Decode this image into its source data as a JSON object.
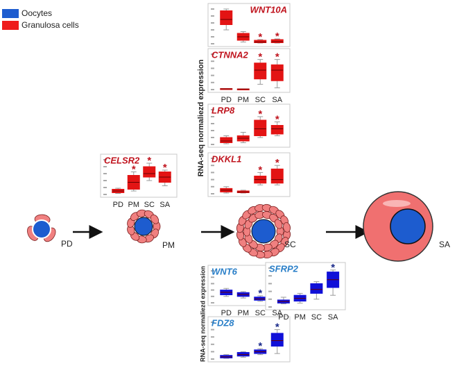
{
  "legend": [
    {
      "label": "Oocytes",
      "color": "#1d5ccf"
    },
    {
      "label": "Granulosa cells",
      "color": "#ee1c1c"
    }
  ],
  "stages": [
    "PD",
    "PM",
    "SC",
    "SA"
  ],
  "axis_labels": [
    "RNA-seq normaliezd expression",
    "RNA-seq normaliezd expression"
  ],
  "panels": [
    {
      "gene": "WNT10A",
      "color": "#e31414",
      "gene_color": "#c0141e",
      "stars": [
        null,
        null,
        "*",
        "*"
      ],
      "boxes": [
        {
          "min": 40,
          "q1": 55,
          "median": 70,
          "q3": 95,
          "max": 100
        },
        {
          "min": 5,
          "q1": 10,
          "median": 20,
          "q3": 30,
          "max": 35
        },
        {
          "min": 2,
          "q1": 3,
          "median": 5,
          "q3": 10,
          "max": 12
        },
        {
          "min": 2,
          "q1": 3,
          "median": 6,
          "q3": 12,
          "max": 14
        }
      ]
    },
    {
      "gene": "CTNNA2",
      "color": "#e31414",
      "gene_color": "#c0141e",
      "categories": [
        "PD",
        "PM",
        "SC",
        "SA"
      ],
      "stars": [
        null,
        null,
        "*",
        "*"
      ],
      "boxes": [
        {
          "min": 1,
          "q1": 1,
          "median": 2,
          "q3": 3,
          "max": 3
        },
        {
          "min": 1,
          "q1": 1,
          "median": 1.5,
          "q3": 2,
          "max": 2
        },
        {
          "min": 15,
          "q1": 30,
          "median": 55,
          "q3": 75,
          "max": 85
        },
        {
          "min": 5,
          "q1": 25,
          "median": 55,
          "q3": 70,
          "max": 85
        }
      ]
    },
    {
      "gene": "LRP8",
      "color": "#e31414",
      "gene_color": "#c0141e",
      "stars": [
        null,
        null,
        "*",
        "*"
      ],
      "boxes": [
        {
          "min": 2,
          "q1": 5,
          "median": 10,
          "q3": 20,
          "max": 25
        },
        {
          "min": 5,
          "q1": 10,
          "median": 18,
          "q3": 25,
          "max": 35
        },
        {
          "min": 20,
          "q1": 25,
          "median": 45,
          "q3": 70,
          "max": 80
        },
        {
          "min": 25,
          "q1": 30,
          "median": 45,
          "q3": 55,
          "max": 65
        }
      ]
    },
    {
      "gene": "DKKL1",
      "color": "#e31414",
      "gene_color": "#c0141e",
      "stars": [
        null,
        null,
        "*",
        "*"
      ],
      "boxes": [
        {
          "min": 2,
          "q1": 5,
          "median": 10,
          "q3": 15,
          "max": 20
        },
        {
          "min": 2,
          "q1": 3,
          "median": 5,
          "q3": 8,
          "max": 10
        },
        {
          "min": 25,
          "q1": 30,
          "median": 40,
          "q3": 50,
          "max": 60
        },
        {
          "min": 25,
          "q1": 30,
          "median": 40,
          "q3": 70,
          "max": 80
        }
      ]
    },
    {
      "gene": "CELSR2",
      "color": "#e31414",
      "gene_color": "#c0141e",
      "categories": [
        "PD",
        "PM",
        "SC",
        "SA"
      ],
      "stars": [
        null,
        "*",
        "*",
        "*"
      ],
      "boxes": [
        {
          "min": 3,
          "q1": 5,
          "median": 10,
          "q3": 15,
          "max": 18
        },
        {
          "min": 10,
          "q1": 15,
          "median": 35,
          "q3": 55,
          "max": 65
        },
        {
          "min": 40,
          "q1": 50,
          "median": 60,
          "q3": 80,
          "max": 90
        },
        {
          "min": 25,
          "q1": 35,
          "median": 50,
          "q3": 65,
          "max": 70
        }
      ]
    },
    {
      "gene": "WNT6",
      "color": "#1010d8",
      "gene_color": "#2a7fc8",
      "categories": [
        "PD",
        "PM",
        "SC",
        "SA"
      ],
      "stars": [
        null,
        null,
        "*",
        "*"
      ],
      "boxes": [
        {
          "min": 20,
          "q1": 25,
          "median": 33,
          "q3": 40,
          "max": 45
        },
        {
          "min": 15,
          "q1": 20,
          "median": 26,
          "q3": 32,
          "max": 35
        },
        {
          "min": 5,
          "q1": 8,
          "median": 12,
          "q3": 18,
          "max": 22
        },
        {
          "min": 1,
          "q1": 1,
          "median": 2,
          "q3": 3,
          "max": 3
        }
      ]
    },
    {
      "gene": "FDZ8",
      "color": "#1010d8",
      "gene_color": "#2a7fc8",
      "stars": [
        null,
        null,
        "*",
        "*"
      ],
      "boxes": [
        {
          "min": 2,
          "q1": 3,
          "median": 6,
          "q3": 10,
          "max": 12
        },
        {
          "min": 5,
          "q1": 8,
          "median": 12,
          "q3": 18,
          "max": 20
        },
        {
          "min": 12,
          "q1": 15,
          "median": 20,
          "q3": 25,
          "max": 28
        },
        {
          "min": 15,
          "q1": 35,
          "median": 50,
          "q3": 70,
          "max": 80
        }
      ]
    },
    {
      "gene": "SFRP2",
      "color": "#1010d8",
      "gene_color": "#2a7fc8",
      "categories": [
        "PD",
        "PM",
        "SC",
        "SA"
      ],
      "stars": [
        null,
        null,
        null,
        "*"
      ],
      "boxes": [
        {
          "min": 8,
          "q1": 10,
          "median": 14,
          "q3": 18,
          "max": 25
        },
        {
          "min": 10,
          "q1": 15,
          "median": 22,
          "q3": 30,
          "max": 35
        },
        {
          "min": 20,
          "q1": 35,
          "median": 45,
          "q3": 60,
          "max": 65
        },
        {
          "min": 30,
          "q1": 50,
          "median": 70,
          "q3": 90,
          "max": 95
        }
      ]
    }
  ]
}
